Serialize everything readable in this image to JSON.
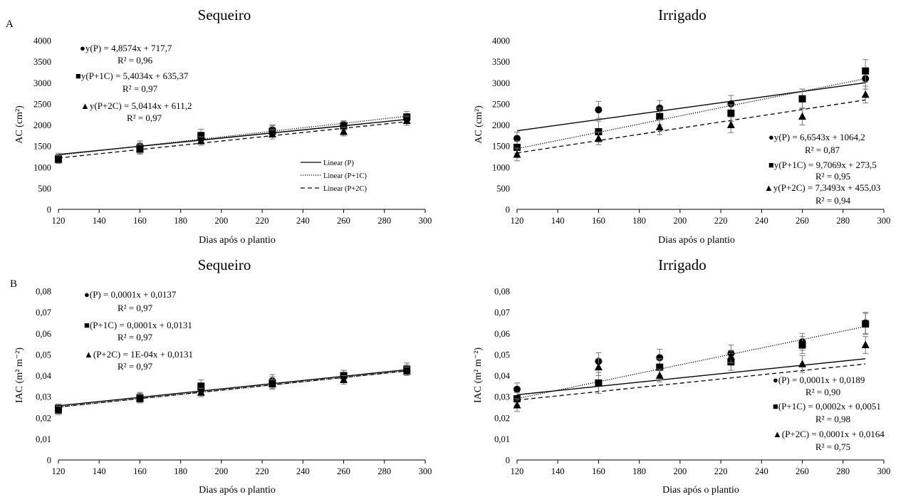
{
  "panel_labels": [
    "A",
    "B"
  ],
  "chart_data": [
    {
      "id": "ac-sequeiro",
      "type": "scatter",
      "title": "Sequeiro",
      "xlabel": "Dias após o plantio",
      "ylabel": "AC (cm²)",
      "xlim": [
        120,
        300
      ],
      "ylim": [
        0,
        4000
      ],
      "xticks": [
        120,
        140,
        160,
        180,
        200,
        220,
        240,
        260,
        280,
        300
      ],
      "yticks": [
        0,
        500,
        1000,
        1500,
        2000,
        2500,
        3000,
        3500,
        4000
      ],
      "ytick_labels": [
        "0",
        "500",
        "1000",
        "1500",
        "2000",
        "2500",
        "3000",
        "3500",
        "4000"
      ],
      "x": [
        120,
        160,
        190,
        225,
        260,
        291
      ],
      "series": [
        {
          "name": "P",
          "marker": "circle",
          "values": [
            1230,
            1500,
            1680,
            1880,
            2000,
            2140
          ],
          "error": [
            100,
            120,
            110,
            120,
            100,
            110
          ],
          "fit": [
            4.8574,
            717.7
          ],
          "line": "solid"
        },
        {
          "name": "P+1C",
          "marker": "square",
          "values": [
            1200,
            1450,
            1750,
            1850,
            1980,
            2190
          ],
          "error": [
            100,
            120,
            150,
            130,
            110,
            130
          ],
          "fit": [
            5.4034,
            635.37
          ],
          "line": "dotted"
        },
        {
          "name": "P+2C",
          "marker": "triangle",
          "values": [
            1180,
            1420,
            1620,
            1780,
            1840,
            2100
          ],
          "error": [
            90,
            110,
            100,
            110,
            100,
            110
          ],
          "fit": [
            5.0414,
            611.2
          ],
          "line": "dashed"
        }
      ],
      "annotations": [
        {
          "symbol": "●",
          "eq": "y(P) = 4,8574x + 717,7",
          "r2": "R² = 0,96"
        },
        {
          "symbol": "■",
          "eq": "y(P+1C) = 5,4034x + 635,37",
          "r2": "R² = 0,97"
        },
        {
          "symbol": "▲",
          "eq": "y(P+2C) = 5,0414x + 611,2",
          "r2": "R² = 0,97"
        }
      ],
      "legend": [
        "Linear (P)",
        "Linear (P+1C)",
        "Linear (P+2C)"
      ]
    },
    {
      "id": "ac-irrigado",
      "type": "scatter",
      "title": "Irrigado",
      "xlabel": "Dias após o plantio",
      "ylabel": "AC (cm²)",
      "xlim": [
        120,
        300
      ],
      "ylim": [
        0,
        4000
      ],
      "xticks": [
        120,
        140,
        160,
        180,
        200,
        220,
        240,
        260,
        280,
        300
      ],
      "yticks": [
        0,
        500,
        1000,
        1500,
        2000,
        2500,
        3000,
        3500,
        4000
      ],
      "ytick_labels": [
        "0",
        "500",
        "1000",
        "1500",
        "2000",
        "2500",
        "3000",
        "3500",
        "4000"
      ],
      "x": [
        120,
        160,
        190,
        225,
        260,
        291
      ],
      "series": [
        {
          "name": "P",
          "marker": "circle",
          "values": [
            1680,
            2360,
            2400,
            2500,
            2620,
            3100
          ],
          "error": [
            150,
            200,
            180,
            200,
            230,
            250
          ],
          "fit": [
            6.6543,
            1064.2
          ],
          "line": "solid"
        },
        {
          "name": "P+1C",
          "marker": "square",
          "values": [
            1470,
            1840,
            2200,
            2280,
            2620,
            3280
          ],
          "error": [
            150,
            250,
            200,
            200,
            230,
            270
          ],
          "fit": [
            9.7069,
            273.5
          ],
          "line": "dotted"
        },
        {
          "name": "P+2C",
          "marker": "triangle",
          "values": [
            1300,
            1680,
            1950,
            2000,
            2200,
            2720
          ],
          "error": [
            150,
            150,
            180,
            180,
            200,
            200
          ],
          "fit": [
            7.3493,
            455.03
          ],
          "line": "dashed"
        }
      ],
      "annotations": [
        {
          "symbol": "●",
          "eq": "y(P) = 6,6543x + 1064,2",
          "r2": "R² = 0,87"
        },
        {
          "symbol": "■",
          "eq": "y(P+1C) = 9,7069x + 273,5",
          "r2": "R² = 0,95"
        },
        {
          "symbol": "▲",
          "eq": "y(P+2C) = 7,3493x + 455,03",
          "r2": "R² = 0,94"
        }
      ]
    },
    {
      "id": "iac-sequeiro",
      "type": "scatter",
      "title": "Sequeiro",
      "xlabel": "Dias após o plantio",
      "ylabel": "IAC (m² m⁻²)",
      "xlim": [
        120,
        300
      ],
      "ylim": [
        0,
        0.08
      ],
      "xticks": [
        120,
        140,
        160,
        180,
        200,
        220,
        240,
        260,
        280,
        300
      ],
      "yticks": [
        0,
        0.01,
        0.02,
        0.03,
        0.04,
        0.05,
        0.06,
        0.07,
        0.08
      ],
      "ytick_labels": [
        "0",
        "0,01",
        "0,02",
        "0,03",
        "0,04",
        "0,05",
        "0,06",
        "0,07",
        "0,08"
      ],
      "x": [
        120,
        160,
        190,
        225,
        260,
        291
      ],
      "series": [
        {
          "name": "P",
          "marker": "circle",
          "values": [
            0.0245,
            0.03,
            0.0335,
            0.0375,
            0.04,
            0.0425
          ],
          "error": [
            0.002,
            0.002,
            0.002,
            0.003,
            0.0025,
            0.0025
          ],
          "fit": [
            0.0001,
            0.0137
          ],
          "line": "solid"
        },
        {
          "name": "P+1C",
          "marker": "square",
          "values": [
            0.0245,
            0.0295,
            0.035,
            0.0365,
            0.04,
            0.043
          ],
          "error": [
            0.002,
            0.002,
            0.003,
            0.003,
            0.0025,
            0.003
          ],
          "fit": [
            0.0001,
            0.0131
          ],
          "line": "dotted"
        },
        {
          "name": "P+2C",
          "marker": "triangle",
          "values": [
            0.0235,
            0.029,
            0.032,
            0.036,
            0.038,
            0.042
          ],
          "error": [
            0.002,
            0.002,
            0.002,
            0.002,
            0.002,
            0.002
          ],
          "fit": [
            0.0001,
            0.0131
          ],
          "line": "dashed"
        }
      ],
      "annotations": [
        {
          "symbol": "●",
          "eq": "(P) = 0,0001x + 0,0137",
          "r2": "R² = 0,97"
        },
        {
          "symbol": "■",
          "eq": "(P+1C) = 0,0001x + 0,0131",
          "r2": "R² = 0,97"
        },
        {
          "symbol": "▲",
          "eq": "(P+2C) = 1E-04x + 0,0131",
          "r2": "R² = 0,97"
        }
      ]
    },
    {
      "id": "iac-irrigado",
      "type": "scatter",
      "title": "Irrigado",
      "xlabel": "Dias após o plantio",
      "ylabel": "IAC (m² m⁻²)",
      "xlim": [
        120,
        300
      ],
      "ylim": [
        0,
        0.08
      ],
      "xticks": [
        120,
        140,
        160,
        180,
        200,
        220,
        240,
        260,
        280,
        300
      ],
      "yticks": [
        0,
        0.01,
        0.02,
        0.03,
        0.04,
        0.05,
        0.06,
        0.07,
        0.08
      ],
      "ytick_labels": [
        "0",
        "0,01",
        "0,02",
        "0,03",
        "0,04",
        "0,05",
        "0,06",
        "0,07",
        "0,08"
      ],
      "x": [
        120,
        160,
        190,
        225,
        260,
        291
      ],
      "series": [
        {
          "name": "P",
          "marker": "circle",
          "values": [
            0.0335,
            0.0468,
            0.0485,
            0.0505,
            0.056,
            0.065
          ],
          "error": [
            0.003,
            0.004,
            0.004,
            0.004,
            0.004,
            0.005
          ],
          "fit": [
            0.0001,
            0.0189
          ],
          "line": "solid"
        },
        {
          "name": "P+1C",
          "marker": "square",
          "values": [
            0.029,
            0.0365,
            0.044,
            0.0465,
            0.0545,
            0.0645
          ],
          "error": [
            0.003,
            0.005,
            0.004,
            0.004,
            0.004,
            0.005
          ],
          "fit": [
            0.0002,
            0.0051
          ],
          "line": "dotted"
        },
        {
          "name": "P+2C",
          "marker": "triangle",
          "values": [
            0.026,
            0.044,
            0.04,
            0.049,
            0.0455,
            0.0545
          ],
          "error": [
            0.003,
            0.004,
            0.003,
            0.003,
            0.004,
            0.004
          ],
          "fit": [
            0.0001,
            0.0164
          ],
          "line": "dashed"
        }
      ],
      "annotations": [
        {
          "symbol": "●",
          "eq": "(P) = 0,0001x + 0,0189",
          "r2": "R² = 0,90"
        },
        {
          "symbol": "■",
          "eq": "(P+1C) = 0,0002x + 0,0051",
          "r2": "R² = 0,98"
        },
        {
          "symbol": "▲",
          "eq": "(P+2C) = 0,0001x + 0,0164",
          "r2": "R² = 0,75"
        }
      ]
    }
  ]
}
